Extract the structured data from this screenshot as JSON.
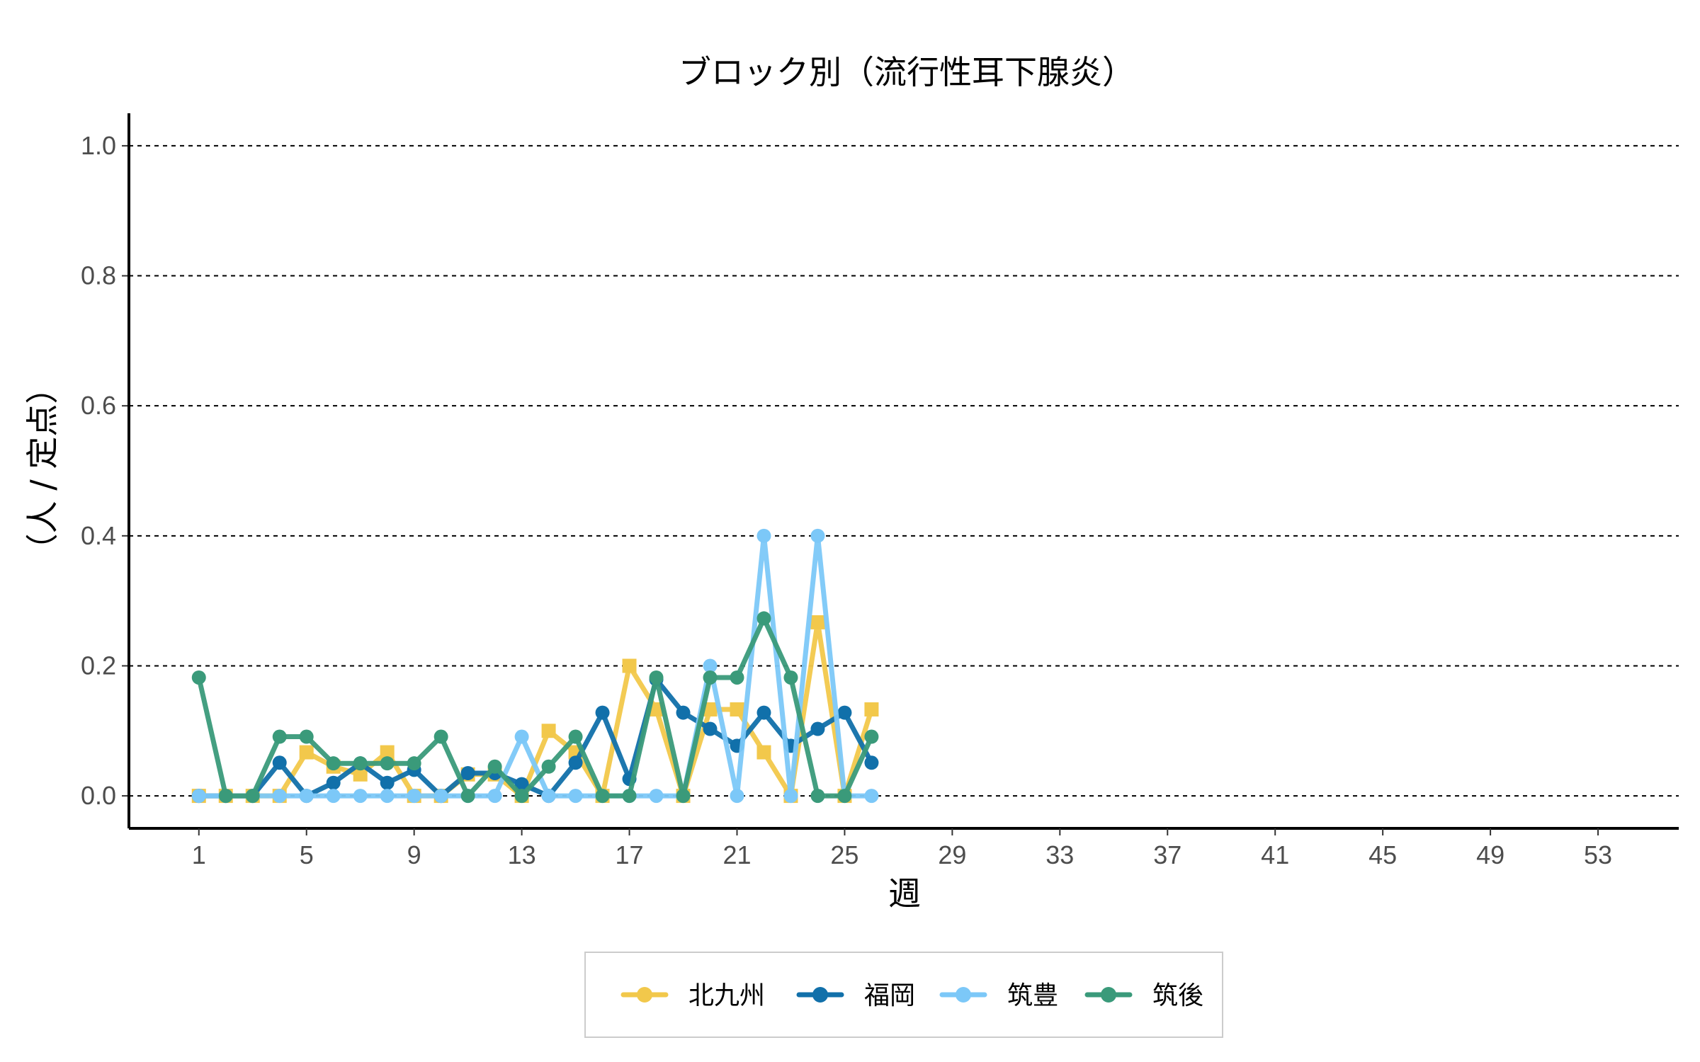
{
  "chart_data": {
    "type": "line",
    "title": "ブロック別（流行性耳下腺炎）",
    "xlabel": "週",
    "ylabel": "（人 / 定点）",
    "xlim": [
      -1.6,
      56.0
    ],
    "ylim": [
      -0.05,
      1.05
    ],
    "x_ticks": [
      1,
      5,
      9,
      13,
      17,
      21,
      25,
      29,
      33,
      37,
      41,
      45,
      49,
      53
    ],
    "y_ticks": [
      0.0,
      0.2,
      0.4,
      0.6,
      0.8,
      1.0
    ],
    "y_tick_labels": [
      "0.0",
      "0.2",
      "0.4",
      "0.6",
      "0.8",
      "1.0"
    ],
    "grid": "horizontal-dashed",
    "legend_position": "bottom",
    "x": [
      1,
      2,
      3,
      4,
      5,
      6,
      7,
      8,
      9,
      10,
      11,
      12,
      13,
      14,
      15,
      16,
      17,
      18,
      19,
      20,
      21,
      22,
      23,
      24,
      25,
      26
    ],
    "series": [
      {
        "name": "北九州",
        "color": "#F2C84B",
        "marker": "square",
        "values": [
          0,
          0,
          0,
          0,
          0.067,
          0.045,
          0.033,
          0.067,
          0,
          0,
          0.033,
          0.033,
          0,
          0.1,
          0.067,
          0,
          0.2,
          0.133,
          0,
          0.133,
          0.133,
          0.067,
          0,
          0.267,
          0,
          0.133
        ]
      },
      {
        "name": "福岡",
        "color": "#1170AA",
        "marker": "circle",
        "values": [
          0,
          0,
          0,
          0.051,
          0,
          0.02,
          0.05,
          0.02,
          0.04,
          0,
          0.035,
          0.035,
          0.018,
          0,
          0.051,
          0.128,
          0.026,
          0.179,
          0.128,
          0.103,
          0.077,
          0.128,
          0.077,
          0.103,
          0.128,
          0.051
        ]
      },
      {
        "name": "筑豊",
        "color": "#7CC8F8",
        "marker": "circle",
        "values": [
          0,
          0,
          0,
          0,
          0,
          0,
          0,
          0,
          0,
          0,
          0,
          0,
          0.091,
          0,
          0,
          0,
          0,
          0,
          0,
          0.2,
          0,
          0.4,
          0,
          0.4,
          0,
          0
        ]
      },
      {
        "name": "筑後",
        "color": "#3A9A7A",
        "marker": "circle",
        "values": [
          0.182,
          0,
          0,
          0.091,
          0.091,
          0.05,
          0.05,
          0.05,
          0.05,
          0.091,
          0,
          0.045,
          0,
          0.045,
          0.091,
          0,
          0,
          0.182,
          0,
          0.182,
          0.182,
          0.273,
          0.182,
          0,
          0,
          0.091
        ]
      }
    ]
  }
}
